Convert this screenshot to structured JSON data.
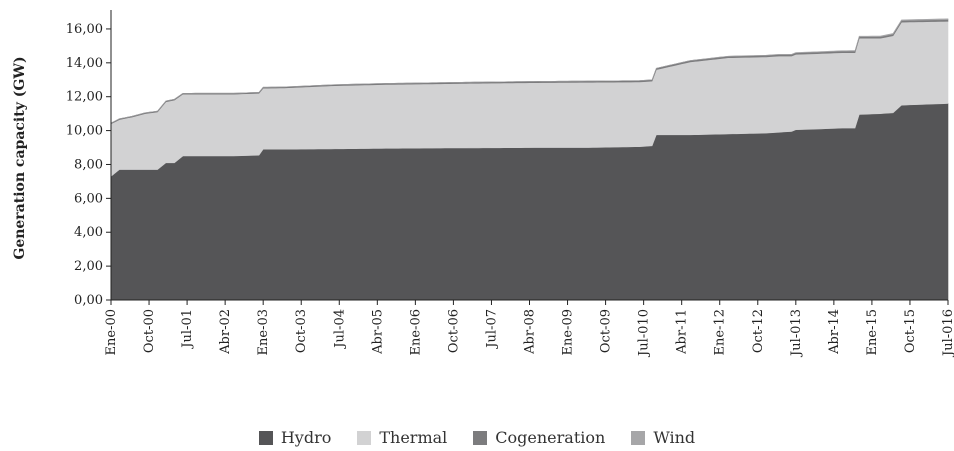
{
  "chart_data": {
    "type": "area",
    "stacked": true,
    "ylabel": "Generation capacity (GW)",
    "ylim": [
      0,
      17
    ],
    "yticks": [
      "0,00",
      "2,00",
      "4,00",
      "6,00",
      "8,00",
      "10,00",
      "12,00",
      "14,00",
      "16,00"
    ],
    "xtick_labels": [
      "Ene-00",
      "Oct-00",
      "Jul-01",
      "Abr-02",
      "Ene-03",
      "Oct-03",
      "Jul-04",
      "Abr-05",
      "Ene-06",
      "Oct-06",
      "Jul-07",
      "Abr-08",
      "Ene-09",
      "Oct-09",
      "Jul-010",
      "Abr-11",
      "Ene-12",
      "Oct-12",
      "Jul-013",
      "Abr-14",
      "Ene-15",
      "Oct-15",
      "Jul-016"
    ],
    "x_start": "2000-01",
    "x_end": "2016-07",
    "legend_position": "bottom",
    "series": [
      {
        "name": "Hydro",
        "color": "#555557",
        "points": [
          [
            "2000-01",
            7.3
          ],
          [
            "2000-03",
            7.7
          ],
          [
            "2000-06",
            7.7
          ],
          [
            "2000-09",
            7.7
          ],
          [
            "2000-12",
            7.7
          ],
          [
            "2001-02",
            8.1
          ],
          [
            "2001-04",
            8.1
          ],
          [
            "2001-06",
            8.5
          ],
          [
            "2002-06",
            8.5
          ],
          [
            "2002-12",
            8.55
          ],
          [
            "2003-01",
            8.9
          ],
          [
            "2003-06",
            8.9
          ],
          [
            "2004-06",
            8.92
          ],
          [
            "2005-06",
            8.95
          ],
          [
            "2006-06",
            8.97
          ],
          [
            "2007-06",
            8.98
          ],
          [
            "2008-06",
            9.0
          ],
          [
            "2009-06",
            9.0
          ],
          [
            "2010-06",
            9.05
          ],
          [
            "2010-09",
            9.1
          ],
          [
            "2010-10",
            9.75
          ],
          [
            "2011-06",
            9.75
          ],
          [
            "2012-03",
            9.8
          ],
          [
            "2012-12",
            9.85
          ],
          [
            "2013-03",
            9.9
          ],
          [
            "2013-06",
            9.95
          ],
          [
            "2013-07",
            10.05
          ],
          [
            "2014-01",
            10.1
          ],
          [
            "2014-06",
            10.15
          ],
          [
            "2014-09",
            10.15
          ],
          [
            "2014-10",
            10.95
          ],
          [
            "2015-03",
            11.0
          ],
          [
            "2015-06",
            11.05
          ],
          [
            "2015-08",
            11.5
          ],
          [
            "2016-07",
            11.6
          ]
        ]
      },
      {
        "name": "Thermal",
        "color": "#d2d2d3",
        "points": [
          [
            "2000-01",
            3.1
          ],
          [
            "2000-03",
            2.95
          ],
          [
            "2000-06",
            3.1
          ],
          [
            "2000-09",
            3.3
          ],
          [
            "2000-12",
            3.4
          ],
          [
            "2001-02",
            3.6
          ],
          [
            "2001-04",
            3.7
          ],
          [
            "2001-06",
            3.65
          ],
          [
            "2002-06",
            3.65
          ],
          [
            "2002-12",
            3.65
          ],
          [
            "2003-01",
            3.6
          ],
          [
            "2003-06",
            3.62
          ],
          [
            "2004-06",
            3.73
          ],
          [
            "2005-06",
            3.77
          ],
          [
            "2006-06",
            3.79
          ],
          [
            "2007-06",
            3.82
          ],
          [
            "2008-06",
            3.83
          ],
          [
            "2009-06",
            3.85
          ],
          [
            "2010-06",
            3.82
          ],
          [
            "2010-09",
            3.82
          ],
          [
            "2010-10",
            3.85
          ],
          [
            "2011-06",
            4.3
          ],
          [
            "2012-03",
            4.5
          ],
          [
            "2012-12",
            4.5
          ],
          [
            "2013-03",
            4.5
          ],
          [
            "2013-06",
            4.45
          ],
          [
            "2013-07",
            4.45
          ],
          [
            "2014-01",
            4.45
          ],
          [
            "2014-06",
            4.45
          ],
          [
            "2014-09",
            4.45
          ],
          [
            "2014-10",
            4.5
          ],
          [
            "2015-03",
            4.45
          ],
          [
            "2015-06",
            4.55
          ],
          [
            "2015-08",
            4.9
          ],
          [
            "2016-07",
            4.85
          ]
        ]
      },
      {
        "name": "Cogeneration",
        "color": "#7c7c7e",
        "points": [
          [
            "2000-01",
            0.05
          ],
          [
            "2016-07",
            0.1
          ]
        ]
      },
      {
        "name": "Wind",
        "color": "#a6a6a8",
        "points": [
          [
            "2000-01",
            0.0
          ],
          [
            "2011-01",
            0.0
          ],
          [
            "2014-01",
            0.02
          ],
          [
            "2016-07",
            0.05
          ]
        ]
      }
    ]
  }
}
